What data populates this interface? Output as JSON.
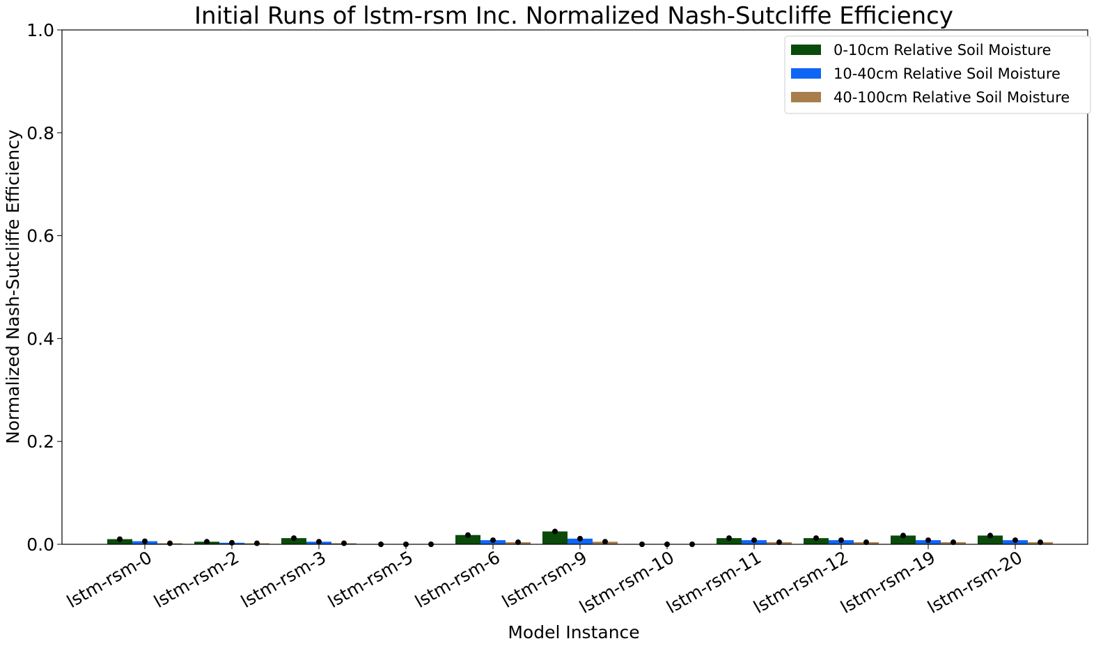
{
  "chart_data": {
    "type": "bar",
    "title": "Initial Runs of lstm-rsm Inc. Normalized Nash-Sutcliffe Efficiency",
    "xlabel": "Model Instance",
    "ylabel": "Normalized Nash-Sutcliffe Efficiency",
    "ylim": [
      0,
      1.0
    ],
    "yticks": [
      "0.0",
      "0.2",
      "0.4",
      "0.6",
      "0.8",
      "1.0"
    ],
    "ytick_values": [
      0.0,
      0.2,
      0.4,
      0.6,
      0.8,
      1.0
    ],
    "grid": false,
    "legend_position": "top-right",
    "categories": [
      "lstm-rsm-0",
      "lstm-rsm-2",
      "lstm-rsm-3",
      "lstm-rsm-5",
      "lstm-rsm-6",
      "lstm-rsm-9",
      "lstm-rsm-10",
      "lstm-rsm-11",
      "lstm-rsm-12",
      "lstm-rsm-19",
      "lstm-rsm-20"
    ],
    "series": [
      {
        "name": "0-10cm Relative Soil Moisture",
        "color": "#0a4a0a",
        "values": [
          0.01,
          0.005,
          0.012,
          0.0,
          0.018,
          0.025,
          0.0,
          0.012,
          0.012,
          0.017,
          0.017
        ]
      },
      {
        "name": "10-40cm Relative Soil Moisture",
        "color": "#0f66f5",
        "values": [
          0.006,
          0.003,
          0.005,
          0.0,
          0.008,
          0.011,
          0.0,
          0.008,
          0.008,
          0.008,
          0.008
        ]
      },
      {
        "name": "40-100cm Relative Soil Moisture",
        "color": "#a87e4d",
        "values": [
          0.002,
          0.002,
          0.002,
          0.0,
          0.004,
          0.005,
          0.0,
          0.004,
          0.004,
          0.004,
          0.004
        ]
      }
    ],
    "markers": "black dot at top of each bar"
  }
}
